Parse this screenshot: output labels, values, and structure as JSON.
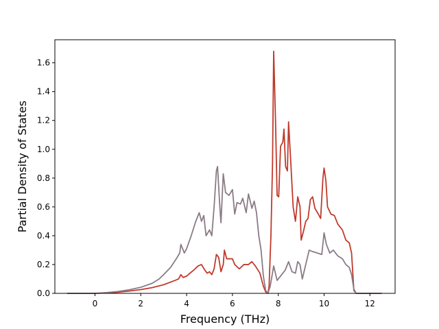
{
  "chart_data": {
    "type": "line",
    "title": "",
    "xlabel": "Frequency (THz)",
    "ylabel": "Partial Density of States",
    "xlim": [
      -1.75,
      13.1
    ],
    "ylim": [
      0.0,
      1.76
    ],
    "xticks": [
      0,
      2,
      4,
      6,
      8,
      10,
      12
    ],
    "yticks": [
      0.0,
      0.2,
      0.4,
      0.6,
      0.8,
      1.0,
      1.2,
      1.4,
      1.6
    ],
    "xtick_labels": [
      "0",
      "2",
      "4",
      "6",
      "8",
      "10",
      "12"
    ],
    "ytick_labels": [
      "0.0",
      "0.2",
      "0.4",
      "0.6",
      "0.8",
      "1.0",
      "1.2",
      "1.4",
      "1.6"
    ],
    "grid": false,
    "legend": "none",
    "series": [
      {
        "color": "#c0392b",
        "points": [
          [
            -1.2,
            0.0
          ],
          [
            0.0,
            0.0
          ],
          [
            0.5,
            0.003
          ],
          [
            1.0,
            0.008
          ],
          [
            1.5,
            0.016
          ],
          [
            2.0,
            0.026
          ],
          [
            2.5,
            0.04
          ],
          [
            3.0,
            0.06
          ],
          [
            3.5,
            0.09
          ],
          [
            3.65,
            0.1
          ],
          [
            3.75,
            0.13
          ],
          [
            3.85,
            0.11
          ],
          [
            4.0,
            0.12
          ],
          [
            4.3,
            0.16
          ],
          [
            4.5,
            0.19
          ],
          [
            4.65,
            0.2
          ],
          [
            4.8,
            0.16
          ],
          [
            4.9,
            0.14
          ],
          [
            5.0,
            0.15
          ],
          [
            5.1,
            0.13
          ],
          [
            5.2,
            0.17
          ],
          [
            5.3,
            0.27
          ],
          [
            5.4,
            0.25
          ],
          [
            5.5,
            0.15
          ],
          [
            5.6,
            0.2
          ],
          [
            5.65,
            0.3
          ],
          [
            5.75,
            0.24
          ],
          [
            6.0,
            0.24
          ],
          [
            6.1,
            0.2
          ],
          [
            6.3,
            0.17
          ],
          [
            6.5,
            0.2
          ],
          [
            6.7,
            0.2
          ],
          [
            6.85,
            0.22
          ],
          [
            7.0,
            0.19
          ],
          [
            7.2,
            0.14
          ],
          [
            7.35,
            0.05
          ],
          [
            7.45,
            0.01
          ],
          [
            7.55,
            0.0
          ],
          [
            7.6,
            0.05
          ],
          [
            7.68,
            0.4
          ],
          [
            7.75,
            0.9
          ],
          [
            7.8,
            1.68
          ],
          [
            7.88,
            1.2
          ],
          [
            7.95,
            0.68
          ],
          [
            8.02,
            0.67
          ],
          [
            8.1,
            1.02
          ],
          [
            8.2,
            1.05
          ],
          [
            8.25,
            1.14
          ],
          [
            8.32,
            0.88
          ],
          [
            8.4,
            0.85
          ],
          [
            8.45,
            1.19
          ],
          [
            8.55,
            0.9
          ],
          [
            8.65,
            0.6
          ],
          [
            8.75,
            0.5
          ],
          [
            8.85,
            0.67
          ],
          [
            8.95,
            0.6
          ],
          [
            9.0,
            0.37
          ],
          [
            9.1,
            0.43
          ],
          [
            9.2,
            0.5
          ],
          [
            9.3,
            0.52
          ],
          [
            9.4,
            0.65
          ],
          [
            9.5,
            0.67
          ],
          [
            9.6,
            0.59
          ],
          [
            9.75,
            0.55
          ],
          [
            9.85,
            0.52
          ],
          [
            9.95,
            0.8
          ],
          [
            10.0,
            0.87
          ],
          [
            10.08,
            0.78
          ],
          [
            10.15,
            0.6
          ],
          [
            10.3,
            0.55
          ],
          [
            10.45,
            0.54
          ],
          [
            10.6,
            0.48
          ],
          [
            10.8,
            0.44
          ],
          [
            10.95,
            0.37
          ],
          [
            11.1,
            0.35
          ],
          [
            11.2,
            0.28
          ],
          [
            11.25,
            0.15
          ],
          [
            11.3,
            0.02
          ],
          [
            11.4,
            0.0
          ],
          [
            12.5,
            0.0
          ]
        ]
      },
      {
        "color": "#8a7a85",
        "points": [
          [
            -1.2,
            0.0
          ],
          [
            0.0,
            0.0
          ],
          [
            0.5,
            0.005
          ],
          [
            1.0,
            0.013
          ],
          [
            1.5,
            0.025
          ],
          [
            2.0,
            0.042
          ],
          [
            2.5,
            0.07
          ],
          [
            2.8,
            0.1
          ],
          [
            3.0,
            0.13
          ],
          [
            3.3,
            0.18
          ],
          [
            3.55,
            0.24
          ],
          [
            3.7,
            0.28
          ],
          [
            3.75,
            0.34
          ],
          [
            3.9,
            0.28
          ],
          [
            4.0,
            0.31
          ],
          [
            4.2,
            0.4
          ],
          [
            4.4,
            0.5
          ],
          [
            4.55,
            0.56
          ],
          [
            4.65,
            0.5
          ],
          [
            4.75,
            0.54
          ],
          [
            4.85,
            0.4
          ],
          [
            5.0,
            0.44
          ],
          [
            5.1,
            0.4
          ],
          [
            5.2,
            0.6
          ],
          [
            5.3,
            0.85
          ],
          [
            5.35,
            0.88
          ],
          [
            5.45,
            0.6
          ],
          [
            5.5,
            0.49
          ],
          [
            5.6,
            0.83
          ],
          [
            5.7,
            0.7
          ],
          [
            5.85,
            0.68
          ],
          [
            6.0,
            0.72
          ],
          [
            6.1,
            0.55
          ],
          [
            6.2,
            0.63
          ],
          [
            6.35,
            0.62
          ],
          [
            6.45,
            0.66
          ],
          [
            6.6,
            0.56
          ],
          [
            6.7,
            0.69
          ],
          [
            6.85,
            0.59
          ],
          [
            6.95,
            0.64
          ],
          [
            7.05,
            0.56
          ],
          [
            7.15,
            0.4
          ],
          [
            7.25,
            0.3
          ],
          [
            7.35,
            0.12
          ],
          [
            7.45,
            0.02
          ],
          [
            7.55,
            0.0
          ],
          [
            7.65,
            0.05
          ],
          [
            7.8,
            0.19
          ],
          [
            7.95,
            0.09
          ],
          [
            8.1,
            0.12
          ],
          [
            8.3,
            0.16
          ],
          [
            8.45,
            0.22
          ],
          [
            8.6,
            0.15
          ],
          [
            8.75,
            0.14
          ],
          [
            8.85,
            0.22
          ],
          [
            8.95,
            0.2
          ],
          [
            9.05,
            0.1
          ],
          [
            9.2,
            0.2
          ],
          [
            9.35,
            0.3
          ],
          [
            9.5,
            0.29
          ],
          [
            9.7,
            0.28
          ],
          [
            9.9,
            0.27
          ],
          [
            10.0,
            0.42
          ],
          [
            10.1,
            0.34
          ],
          [
            10.25,
            0.28
          ],
          [
            10.4,
            0.3
          ],
          [
            10.6,
            0.26
          ],
          [
            10.8,
            0.24
          ],
          [
            10.95,
            0.2
          ],
          [
            11.1,
            0.18
          ],
          [
            11.2,
            0.13
          ],
          [
            11.3,
            0.03
          ],
          [
            11.4,
            0.0
          ],
          [
            12.5,
            0.0
          ]
        ]
      }
    ]
  }
}
